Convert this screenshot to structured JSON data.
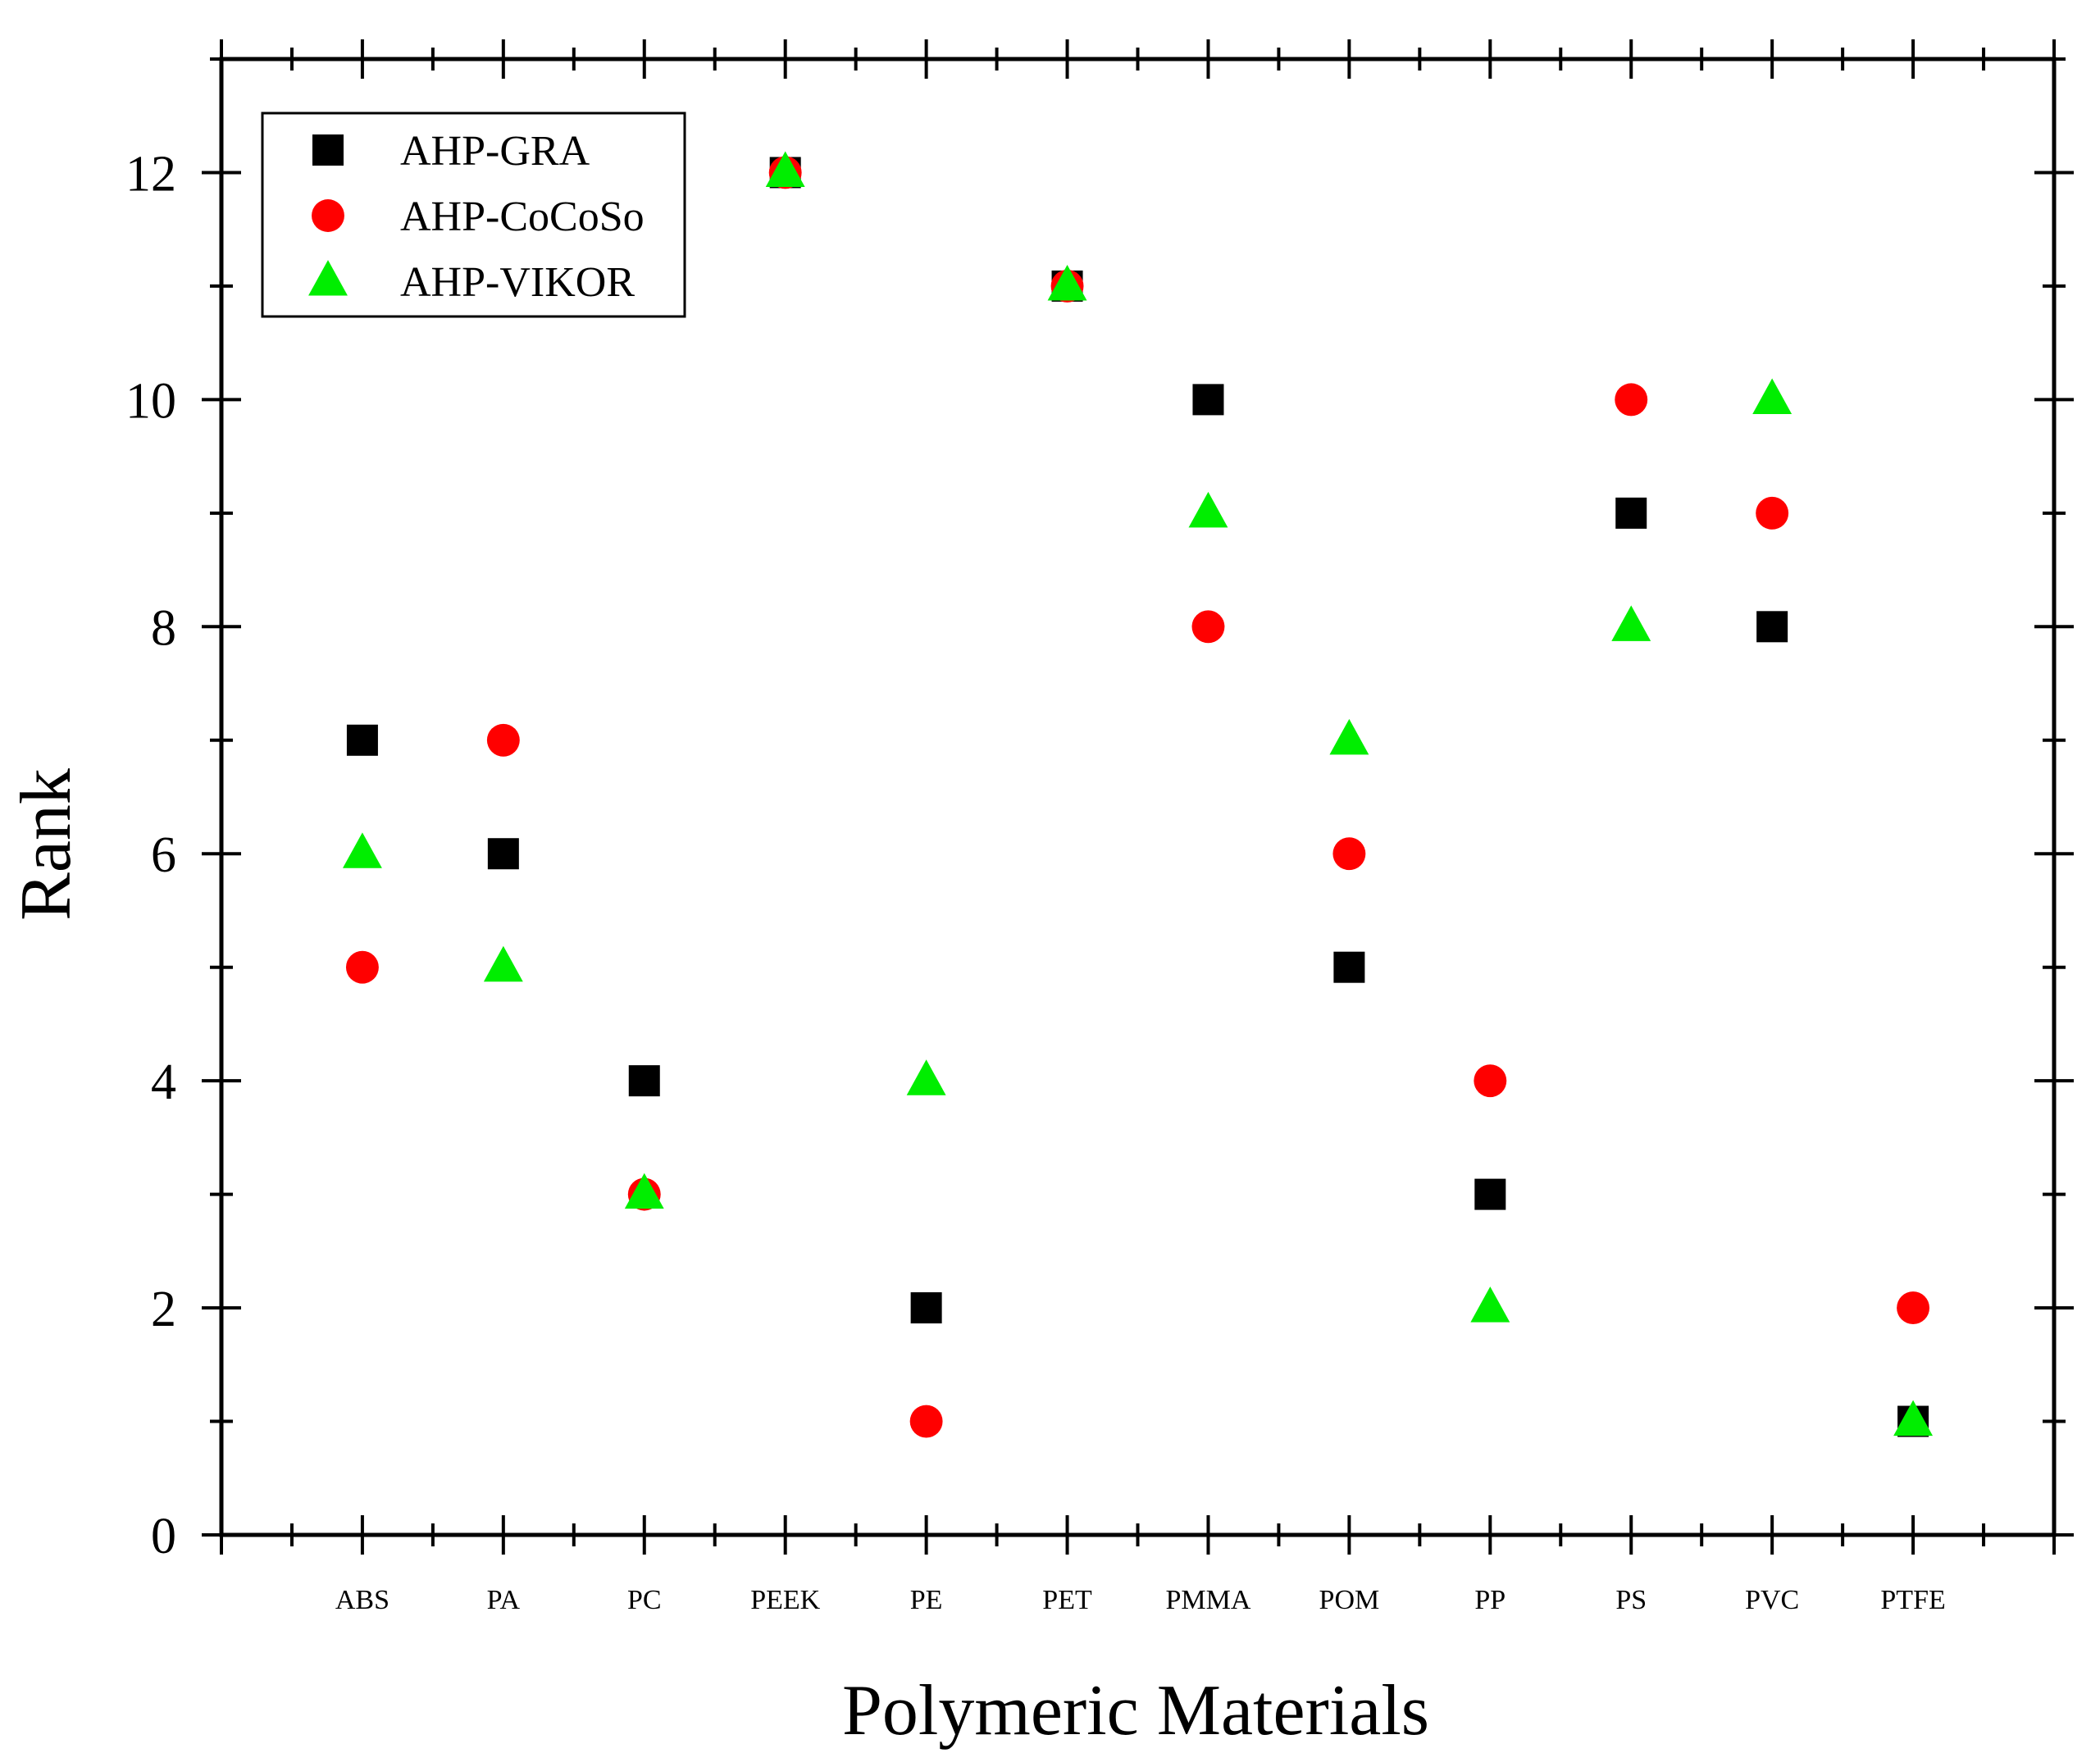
{
  "chart_data": {
    "type": "scatter",
    "xlabel": "Polymeric Materials",
    "ylabel": "Rank",
    "categories": [
      "ABS",
      "PA",
      "PC",
      "PEEK",
      "PE",
      "PET",
      "PMMA",
      "POM",
      "PP",
      "PS",
      "PVC",
      "PTFE"
    ],
    "ylim": [
      0,
      13
    ],
    "yticks": [
      "0",
      "2",
      "4",
      "6",
      "8",
      "10",
      "12"
    ],
    "legend_position": "top-left",
    "series": [
      {
        "name": "AHP-GRA",
        "marker": "square",
        "color": "#000000",
        "values": [
          7,
          6,
          4,
          12,
          2,
          11,
          10,
          5,
          3,
          9,
          8,
          1
        ]
      },
      {
        "name": "AHP-CoCoSo",
        "marker": "circle",
        "color": "#ff0000",
        "values": [
          5,
          7,
          3,
          12,
          1,
          11,
          8,
          6,
          4,
          10,
          9,
          2
        ]
      },
      {
        "name": "AHP-VIKOR",
        "marker": "triangle",
        "color": "#00ee00",
        "values": [
          6,
          5,
          3,
          12,
          4,
          11,
          9,
          7,
          2,
          8,
          10,
          1
        ]
      }
    ]
  }
}
